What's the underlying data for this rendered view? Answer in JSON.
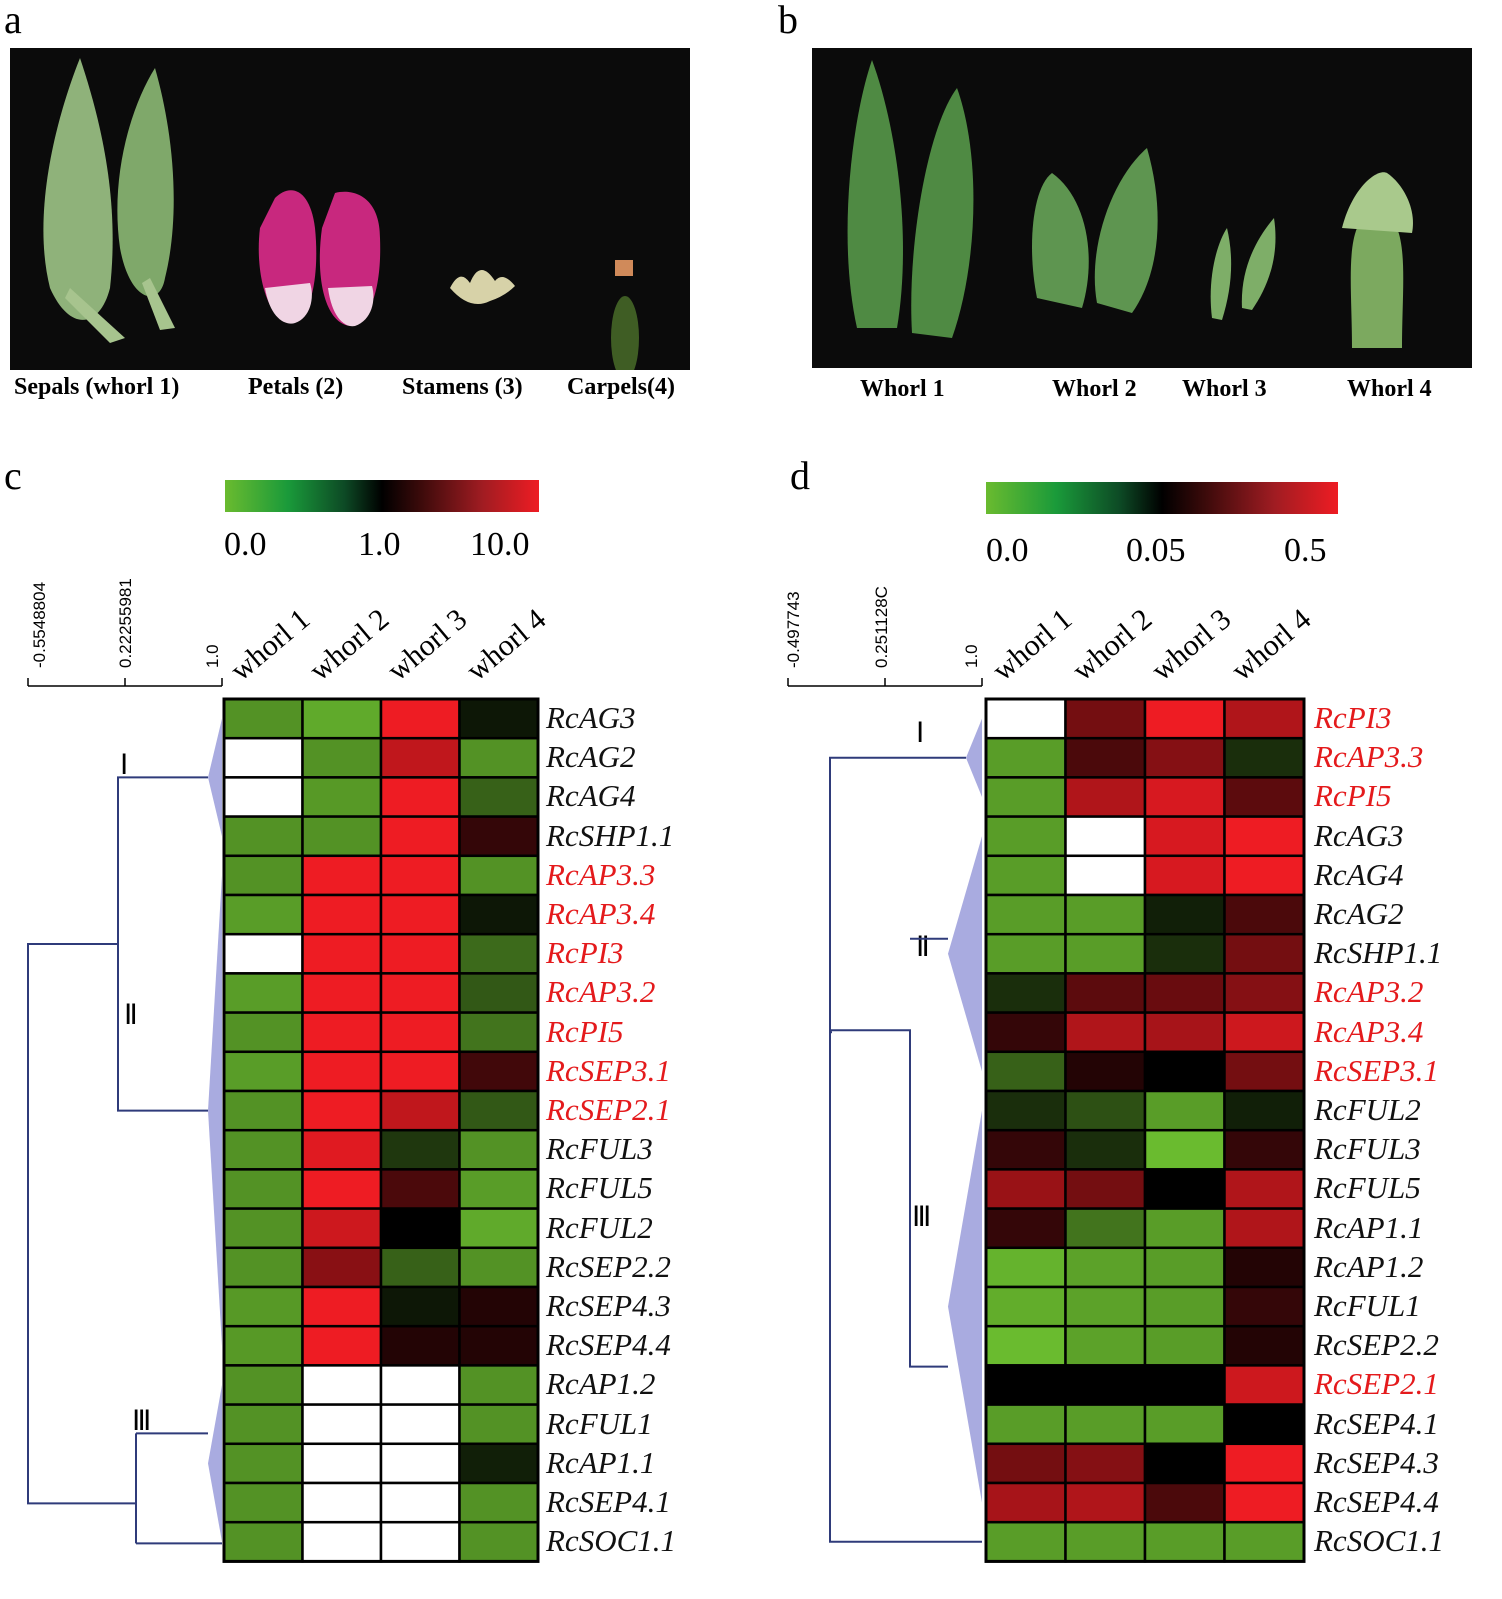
{
  "panels": {
    "a": {
      "letter": "a",
      "captions": [
        "Sepals (whorl 1)",
        "Petals (2)",
        "Stamens (3)",
        "Carpels(4)"
      ]
    },
    "b": {
      "letter": "b",
      "captions": [
        "Whorl 1",
        "Whorl 2",
        "Whorl 3",
        "Whorl 4"
      ]
    },
    "c": {
      "letter": "c",
      "scale_labels": [
        "0.0",
        "1.0",
        "10.0"
      ],
      "dendro_labels": [
        "-0.5548804",
        "0.22255981",
        "1.0"
      ],
      "clusters": [
        "Ⅰ",
        "Ⅱ",
        "Ⅲ"
      ]
    },
    "d": {
      "letter": "d",
      "scale_labels": [
        "0.0",
        "0.05",
        "0.5"
      ],
      "dendro_labels": [
        "-0.497743",
        "0.251128C",
        "1.0"
      ],
      "clusters": [
        "Ⅰ",
        "Ⅱ",
        "Ⅲ"
      ]
    }
  },
  "colors": {
    "low": "#6abb2f",
    "mid": "#000000",
    "high": "#ee1c23",
    "missing": "#ffffff",
    "highlight_text": "#e41a1c",
    "dendrogram": "#2f3b7a"
  },
  "chart_data": [
    {
      "type": "heatmap",
      "panel": "c",
      "columns": [
        "whorl 1",
        "whorl 2",
        "whorl 3",
        "whorl 4"
      ],
      "scale": [
        0.0,
        1.0,
        10.0
      ],
      "rows": [
        {
          "gene": "RcAG3",
          "highlight": false,
          "values": [
            0.15,
            0.05,
            10.0,
            0.85
          ]
        },
        {
          "gene": "RcAG2",
          "highlight": false,
          "values": [
            null,
            0.15,
            5.0,
            0.15
          ]
        },
        {
          "gene": "RcAG4",
          "highlight": false,
          "values": [
            null,
            0.12,
            10.0,
            0.4
          ]
        },
        {
          "gene": "RcSHP1.1",
          "highlight": false,
          "values": [
            0.15,
            0.15,
            10.0,
            1.2
          ]
        },
        {
          "gene": "RcAP3.3",
          "highlight": true,
          "values": [
            0.15,
            10.0,
            10.0,
            0.15
          ]
        },
        {
          "gene": "RcAP3.4",
          "highlight": true,
          "values": [
            0.1,
            10.0,
            10.0,
            0.85
          ]
        },
        {
          "gene": "RcPI3",
          "highlight": true,
          "values": [
            null,
            10.0,
            10.0,
            0.35
          ]
        },
        {
          "gene": "RcAP3.2",
          "highlight": true,
          "values": [
            0.1,
            10.0,
            10.0,
            0.45
          ]
        },
        {
          "gene": "RcPI5",
          "highlight": true,
          "values": [
            0.15,
            10.0,
            10.0,
            0.3
          ]
        },
        {
          "gene": "RcSEP3.1",
          "highlight": true,
          "values": [
            0.1,
            10.0,
            10.0,
            1.3
          ]
        },
        {
          "gene": "RcSEP2.1",
          "highlight": true,
          "values": [
            0.15,
            10.0,
            5.0,
            0.45
          ]
        },
        {
          "gene": "RcFUL3",
          "highlight": false,
          "values": [
            0.15,
            8.0,
            0.65,
            0.15
          ]
        },
        {
          "gene": "RcFUL5",
          "highlight": false,
          "values": [
            0.15,
            10.0,
            1.4,
            0.1
          ]
        },
        {
          "gene": "RcFUL2",
          "highlight": false,
          "values": [
            0.15,
            6.0,
            1.0,
            0.05
          ]
        },
        {
          "gene": "RcSEP2.2",
          "highlight": false,
          "values": [
            0.15,
            2.5,
            0.4,
            0.15
          ]
        },
        {
          "gene": "RcSEP4.3",
          "highlight": false,
          "values": [
            0.12,
            10.0,
            0.85,
            1.1
          ]
        },
        {
          "gene": "RcSEP4.4",
          "highlight": false,
          "values": [
            0.12,
            10.0,
            1.1,
            1.1
          ]
        },
        {
          "gene": "RcAP1.2",
          "highlight": false,
          "values": [
            0.15,
            null,
            null,
            0.15
          ]
        },
        {
          "gene": "RcFUL1",
          "highlight": false,
          "values": [
            0.15,
            null,
            null,
            0.15
          ]
        },
        {
          "gene": "RcAP1.1",
          "highlight": false,
          "values": [
            0.15,
            null,
            null,
            0.8
          ]
        },
        {
          "gene": "RcSEP4.1",
          "highlight": false,
          "values": [
            0.15,
            null,
            null,
            0.15
          ]
        },
        {
          "gene": "RcSOC1.1",
          "highlight": false,
          "values": [
            0.15,
            null,
            null,
            0.15
          ]
        }
      ]
    },
    {
      "type": "heatmap",
      "panel": "d",
      "columns": [
        "whorl 1",
        "whorl 2",
        "whorl 3",
        "whorl 4"
      ],
      "scale": [
        0.0,
        0.05,
        0.5
      ],
      "rows": [
        {
          "gene": "RcPI3",
          "highlight": true,
          "values": [
            null,
            0.1,
            0.5,
            0.2
          ]
        },
        {
          "gene": "RcAP3.3",
          "highlight": true,
          "values": [
            0.005,
            0.07,
            0.12,
            0.035
          ]
        },
        {
          "gene": "RcPI5",
          "highlight": true,
          "values": [
            0.005,
            0.2,
            0.35,
            0.08
          ]
        },
        {
          "gene": "RcAG3",
          "highlight": false,
          "values": [
            0.005,
            null,
            0.35,
            0.5
          ]
        },
        {
          "gene": "RcAG4",
          "highlight": false,
          "values": [
            0.005,
            null,
            0.35,
            0.5
          ]
        },
        {
          "gene": "RcAG2",
          "highlight": false,
          "values": [
            0.005,
            0.005,
            0.04,
            0.07
          ]
        },
        {
          "gene": "RcSHP1.1",
          "highlight": false,
          "values": [
            0.005,
            0.005,
            0.035,
            0.1
          ]
        },
        {
          "gene": "RcAP3.2",
          "highlight": true,
          "values": [
            0.035,
            0.08,
            0.09,
            0.12
          ]
        },
        {
          "gene": "RcAP3.4",
          "highlight": true,
          "values": [
            0.06,
            0.2,
            0.18,
            0.3
          ]
        },
        {
          "gene": "RcSEP3.1",
          "highlight": true,
          "values": [
            0.02,
            0.055,
            0.05,
            0.1
          ]
        },
        {
          "gene": "RcFUL2",
          "highlight": false,
          "values": [
            0.035,
            0.025,
            0.005,
            0.04
          ]
        },
        {
          "gene": "RcFUL3",
          "highlight": false,
          "values": [
            0.06,
            0.035,
            0.0,
            0.06
          ]
        },
        {
          "gene": "RcFUL5",
          "highlight": false,
          "values": [
            0.15,
            0.1,
            0.05,
            0.2
          ]
        },
        {
          "gene": "RcAP1.1",
          "highlight": false,
          "values": [
            0.06,
            0.015,
            0.005,
            0.2
          ]
        },
        {
          "gene": "RcAP1.2",
          "highlight": false,
          "values": [
            0.001,
            0.004,
            0.005,
            0.055
          ]
        },
        {
          "gene": "RcFUL1",
          "highlight": false,
          "values": [
            0.002,
            0.004,
            0.005,
            0.06
          ]
        },
        {
          "gene": "RcSEP2.2",
          "highlight": false,
          "values": [
            0.0,
            0.004,
            0.005,
            0.055
          ]
        },
        {
          "gene": "RcSEP2.1",
          "highlight": true,
          "values": [
            0.05,
            0.05,
            0.05,
            0.3
          ]
        },
        {
          "gene": "RcSEP4.1",
          "highlight": false,
          "values": [
            0.005,
            0.005,
            0.005,
            0.05
          ]
        },
        {
          "gene": "RcSEP4.3",
          "highlight": false,
          "values": [
            0.1,
            0.12,
            0.05,
            0.5
          ]
        },
        {
          "gene": "RcSEP4.4",
          "highlight": false,
          "values": [
            0.18,
            0.2,
            0.07,
            0.5
          ]
        },
        {
          "gene": "RcSOC1.1",
          "highlight": false,
          "values": [
            0.005,
            0.005,
            0.005,
            0.005
          ]
        }
      ]
    }
  ]
}
